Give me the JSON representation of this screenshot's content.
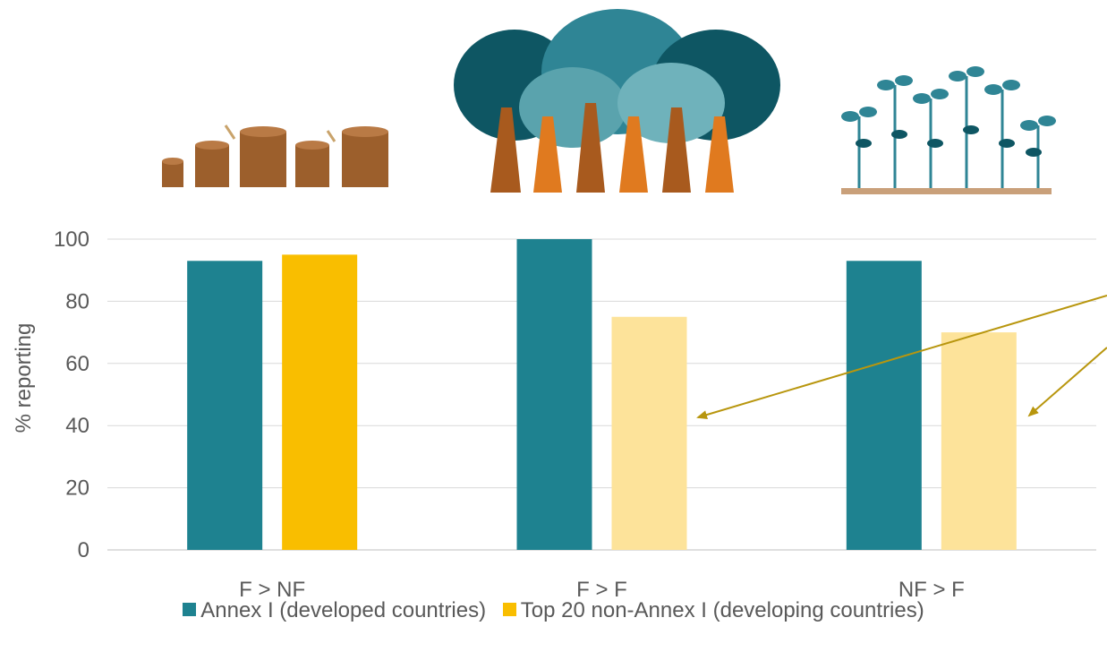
{
  "chart_data": {
    "type": "bar",
    "title": "",
    "xlabel": "",
    "ylabel": "% reporting",
    "ylim": [
      0,
      100
    ],
    "yticks": [
      0,
      20,
      40,
      60,
      80,
      100
    ],
    "grid": true,
    "legend_position": "bottom",
    "categories": [
      "F > NF",
      "F > F",
      "NF > F"
    ],
    "series": [
      {
        "name": "Annex I (developed countries)",
        "color": "#1e8290",
        "values": [
          93,
          100,
          93
        ],
        "point_colors": [
          "#1e8290",
          "#1e8290",
          "#1e8290"
        ]
      },
      {
        "name": "Top 20 non-Annex I (developing countries)",
        "color": "#f9be00",
        "values": [
          95,
          75,
          70
        ],
        "point_colors": [
          "#f9be00",
          "#fde39a",
          "#fde39a"
        ]
      }
    ],
    "annotation_arrow_color": "#b8960e",
    "illustrations": [
      "tree-stumps-icon",
      "forest-trees-icon",
      "seedlings-icon"
    ]
  }
}
